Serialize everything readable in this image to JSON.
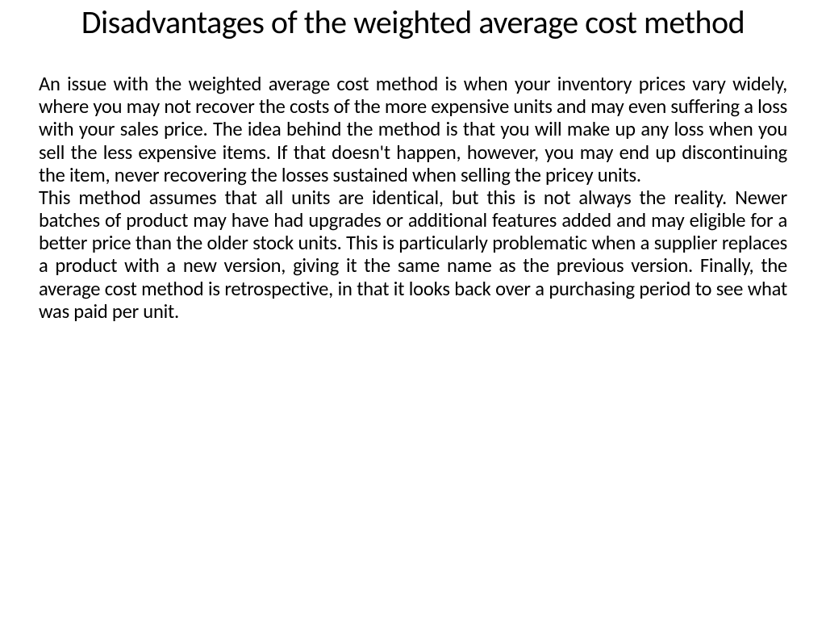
{
  "slide": {
    "title": "Disadvantages of the weighted average cost method",
    "paragraph1": "An issue with the weighted average cost method is when your inventory prices vary widely, where you may not recover the costs of the more expensive units and may even suffering a loss with your sales price. The idea behind the method is that you will make up any loss when you sell the less expensive items. If that doesn't happen, however, you may end up discontinuing the item, never recovering the losses sustained when selling the pricey units.",
    "paragraph2": "This method assumes that all units are identical, but this is not always the reality. Newer batches of product may have had upgrades or additional features added and may eligible for a better price than the older stock units. This is particularly problematic when a supplier replaces a product with a new version, giving it the same name as the previous version. Finally, the average cost method is retrospective, in that it looks back over a purchasing period to see what was paid per unit."
  },
  "styling": {
    "background_color": "#ffffff",
    "text_color": "#000000",
    "title_fontsize": 40,
    "title_weight": 400,
    "body_fontsize": 24.5,
    "body_alignment": "justify",
    "font_family": "Calibri"
  }
}
